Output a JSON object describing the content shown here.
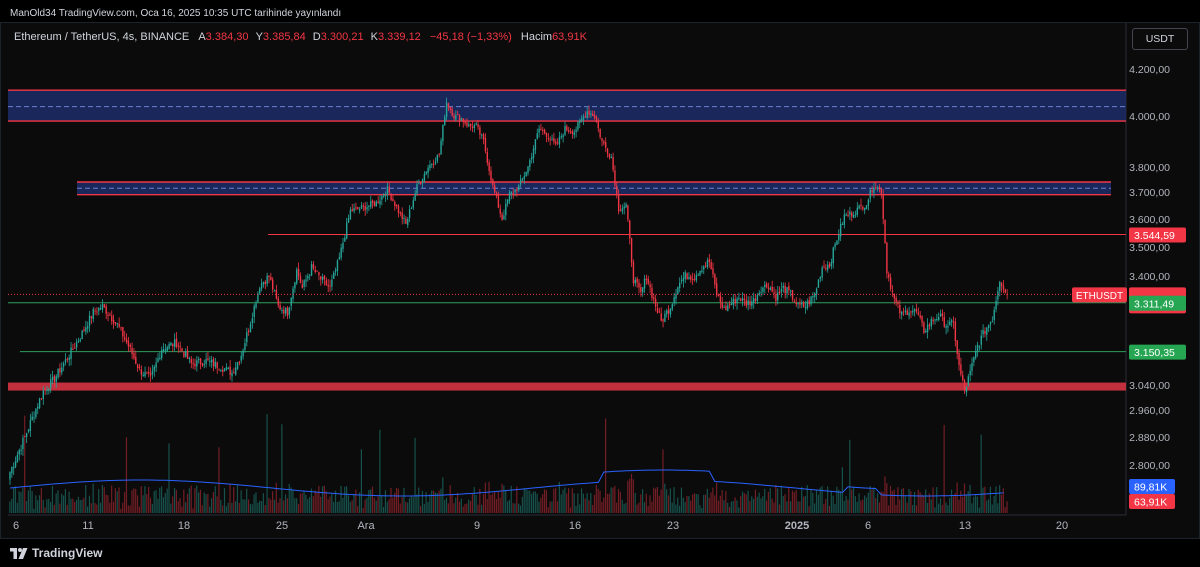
{
  "header": {
    "published": "ManOld34 TradingView.com, Oca 16, 2025 10:35 UTC tarihinde yayınlandı"
  },
  "legend": {
    "symbol": "Ethereum / TetherUS, 4s, BINANCE",
    "open_label": "A",
    "open": "3.384,30",
    "high_label": "Y",
    "high": "3.385,84",
    "low_label": "D",
    "low": "3.300,21",
    "close_label": "K",
    "close": "3.339,12",
    "change": "−45,18 (−1,33%)",
    "volume_label": "Hacim",
    "volume": "63,91K"
  },
  "currency_button": "USDT",
  "footer": {
    "brand": "TradingView"
  },
  "colors": {
    "up": "#26a69a",
    "down": "#f23645",
    "zone": "#1c2a63",
    "volume_ma": "#2962ff"
  },
  "chart_data": {
    "type": "candlestick",
    "symbol": "ETHUSDT",
    "timeframe": "4s",
    "y_ticks": [
      "4.200,00",
      "4.000,00",
      "3.800,00",
      "3.700,00",
      "3.600,00",
      "3.500,00",
      "3.400,00",
      "3.040,00",
      "2.960,00",
      "2.880,00",
      "2.800,00"
    ],
    "x_ticks": [
      "6",
      "11",
      "18",
      "25",
      "Ara",
      "9",
      "16",
      "23",
      "2025",
      "6",
      "13",
      "20"
    ],
    "last_price": {
      "symbol": "ETHUSDT",
      "price": "3.339,12",
      "countdown": "01:24:34"
    },
    "levels": [
      {
        "value": 3544.59,
        "label": "3.544,59",
        "kind": "resistance"
      },
      {
        "value": 3311.49,
        "label": "3.311,49",
        "kind": "support"
      },
      {
        "value": 3150.35,
        "label": "3.150,35",
        "kind": "support"
      },
      {
        "value": 3035,
        "label": "",
        "kind": "support-band"
      }
    ],
    "zones": [
      {
        "from": 3980,
        "to": 4110,
        "mid": 4040
      },
      {
        "from": 3690,
        "to": 3740,
        "mid": 3715
      }
    ],
    "volume_labels": [
      {
        "label": "89,81K",
        "kind": "ma"
      },
      {
        "label": "63,91K",
        "kind": "current"
      }
    ],
    "waypoints": [
      [
        0,
        2780
      ],
      [
        8,
        2880
      ],
      [
        18,
        3020
      ],
      [
        24,
        3060
      ],
      [
        30,
        3120
      ],
      [
        38,
        3200
      ],
      [
        45,
        3280
      ],
      [
        50,
        3300
      ],
      [
        58,
        3240
      ],
      [
        64,
        3170
      ],
      [
        70,
        3090
      ],
      [
        76,
        3060
      ],
      [
        82,
        3160
      ],
      [
        90,
        3180
      ],
      [
        98,
        3110
      ],
      [
        106,
        3120
      ],
      [
        114,
        3100
      ],
      [
        120,
        3080
      ],
      [
        125,
        3140
      ],
      [
        130,
        3250
      ],
      [
        135,
        3370
      ],
      [
        140,
        3400
      ],
      [
        145,
        3300
      ],
      [
        150,
        3280
      ],
      [
        155,
        3420
      ],
      [
        158,
        3360
      ],
      [
        163,
        3430
      ],
      [
        168,
        3390
      ],
      [
        173,
        3360
      ],
      [
        178,
        3460
      ],
      [
        184,
        3630
      ],
      [
        190,
        3640
      ],
      [
        198,
        3660
      ],
      [
        204,
        3710
      ],
      [
        210,
        3630
      ],
      [
        214,
        3580
      ],
      [
        220,
        3720
      ],
      [
        226,
        3800
      ],
      [
        232,
        3850
      ],
      [
        236,
        4060
      ],
      [
        240,
        4000
      ],
      [
        244,
        3990
      ],
      [
        248,
        3960
      ],
      [
        252,
        3960
      ],
      [
        256,
        3900
      ],
      [
        261,
        3720
      ],
      [
        266,
        3600
      ],
      [
        270,
        3690
      ],
      [
        275,
        3720
      ],
      [
        280,
        3800
      ],
      [
        286,
        3950
      ],
      [
        290,
        3930
      ],
      [
        295,
        3880
      ],
      [
        300,
        3950
      ],
      [
        305,
        3940
      ],
      [
        312,
        4020
      ],
      [
        316,
        4000
      ],
      [
        320,
        3900
      ],
      [
        325,
        3840
      ],
      [
        329,
        3640
      ],
      [
        333,
        3650
      ],
      [
        337,
        3390
      ],
      [
        341,
        3340
      ],
      [
        344,
        3400
      ],
      [
        348,
        3320
      ],
      [
        352,
        3250
      ],
      [
        357,
        3300
      ],
      [
        361,
        3370
      ],
      [
        365,
        3400
      ],
      [
        370,
        3400
      ],
      [
        374,
        3430
      ],
      [
        378,
        3450
      ],
      [
        382,
        3340
      ],
      [
        386,
        3290
      ],
      [
        390,
        3310
      ],
      [
        394,
        3330
      ],
      [
        398,
        3310
      ],
      [
        402,
        3320
      ],
      [
        406,
        3360
      ],
      [
        410,
        3370
      ],
      [
        414,
        3330
      ],
      [
        418,
        3360
      ],
      [
        422,
        3340
      ],
      [
        426,
        3300
      ],
      [
        430,
        3300
      ],
      [
        435,
        3340
      ],
      [
        439,
        3430
      ],
      [
        443,
        3440
      ],
      [
        447,
        3530
      ],
      [
        451,
        3610
      ],
      [
        455,
        3620
      ],
      [
        459,
        3640
      ],
      [
        463,
        3660
      ],
      [
        467,
        3730
      ],
      [
        471,
        3700
      ],
      [
        474,
        3420
      ],
      [
        478,
        3320
      ],
      [
        482,
        3270
      ],
      [
        486,
        3290
      ],
      [
        490,
        3280
      ],
      [
        494,
        3220
      ],
      [
        498,
        3250
      ],
      [
        502,
        3270
      ],
      [
        506,
        3240
      ],
      [
        510,
        3240
      ],
      [
        513,
        3100
      ],
      [
        516,
        3020
      ],
      [
        519,
        3080
      ],
      [
        523,
        3170
      ],
      [
        527,
        3220
      ],
      [
        531,
        3260
      ],
      [
        535,
        3390
      ],
      [
        539,
        3339
      ]
    ],
    "volume_bars": 540
  }
}
